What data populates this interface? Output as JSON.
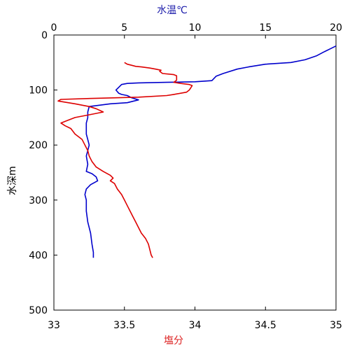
{
  "chart_data": {
    "type": "line",
    "title": "",
    "y_axis": {
      "label": "水深m",
      "range": [
        0,
        500
      ],
      "inverted": true,
      "ticks": [
        0,
        100,
        200,
        300,
        400,
        500
      ]
    },
    "top_x_axis": {
      "label": "水温℃",
      "color": "#1a1aaa",
      "range": [
        0,
        20
      ],
      "ticks": [
        0,
        5,
        10,
        15,
        20
      ]
    },
    "bottom_x_axis": {
      "label": "塩分",
      "color": "#dd2222",
      "range": [
        33,
        35
      ],
      "ticks": [
        33,
        33.5,
        34,
        34.5,
        35
      ]
    },
    "grid": false,
    "legend": "none",
    "series": [
      {
        "axis": "top",
        "color": "#0000cc",
        "points": [
          [
            20.0,
            20
          ],
          [
            19.6,
            25
          ],
          [
            19.2,
            30
          ],
          [
            18.6,
            38
          ],
          [
            17.8,
            45
          ],
          [
            16.8,
            50
          ],
          [
            15.0,
            53
          ],
          [
            13.8,
            58
          ],
          [
            13.0,
            62
          ],
          [
            12.0,
            70
          ],
          [
            11.5,
            75
          ],
          [
            11.2,
            83
          ],
          [
            10.0,
            85
          ],
          [
            8.0,
            86
          ],
          [
            6.0,
            87
          ],
          [
            5.2,
            88
          ],
          [
            4.8,
            90
          ],
          [
            4.6,
            95
          ],
          [
            4.4,
            100
          ],
          [
            4.6,
            106
          ],
          [
            4.8,
            108
          ],
          [
            5.2,
            110
          ],
          [
            5.5,
            114
          ],
          [
            6.0,
            118
          ],
          [
            5.2,
            123
          ],
          [
            4.0,
            125
          ],
          [
            2.5,
            130
          ],
          [
            2.4,
            140
          ],
          [
            2.4,
            150
          ],
          [
            2.3,
            160
          ],
          [
            2.3,
            170
          ],
          [
            2.3,
            180
          ],
          [
            2.4,
            190
          ],
          [
            2.5,
            200
          ],
          [
            2.4,
            210
          ],
          [
            2.3,
            220
          ],
          [
            2.4,
            235
          ],
          [
            2.3,
            248
          ],
          [
            2.7,
            252
          ],
          [
            3.0,
            258
          ],
          [
            3.1,
            265
          ],
          [
            2.6,
            272
          ],
          [
            2.3,
            280
          ],
          [
            2.2,
            290
          ],
          [
            2.3,
            300
          ],
          [
            2.3,
            320
          ],
          [
            2.4,
            340
          ],
          [
            2.6,
            360
          ],
          [
            2.7,
            380
          ],
          [
            2.8,
            395
          ],
          [
            2.8,
            405
          ]
        ]
      },
      {
        "axis": "bottom",
        "color": "#dd0000",
        "points": [
          [
            33.5,
            50
          ],
          [
            33.52,
            53
          ],
          [
            33.55,
            55
          ],
          [
            33.58,
            57
          ],
          [
            33.62,
            58
          ],
          [
            33.68,
            60
          ],
          [
            33.72,
            62
          ],
          [
            33.76,
            64
          ],
          [
            33.75,
            66
          ],
          [
            33.76,
            68
          ],
          [
            33.77,
            70
          ],
          [
            33.85,
            72
          ],
          [
            33.87,
            74
          ],
          [
            33.87,
            77
          ],
          [
            33.87,
            80
          ],
          [
            33.87,
            82
          ],
          [
            33.85,
            86
          ],
          [
            33.9,
            88
          ],
          [
            33.96,
            90
          ],
          [
            33.98,
            92
          ],
          [
            33.97,
            96
          ],
          [
            33.96,
            100
          ],
          [
            33.94,
            104
          ],
          [
            33.85,
            108
          ],
          [
            33.8,
            110
          ],
          [
            33.6,
            113
          ],
          [
            33.3,
            115
          ],
          [
            33.05,
            117
          ],
          [
            33.03,
            120
          ],
          [
            33.15,
            125
          ],
          [
            33.25,
            130
          ],
          [
            33.3,
            134
          ],
          [
            33.35,
            140
          ],
          [
            33.25,
            145
          ],
          [
            33.15,
            150
          ],
          [
            33.1,
            155
          ],
          [
            33.05,
            160
          ],
          [
            33.08,
            165
          ],
          [
            33.12,
            170
          ],
          [
            33.15,
            180
          ],
          [
            33.2,
            190
          ],
          [
            33.22,
            200
          ],
          [
            33.24,
            210
          ],
          [
            33.25,
            220
          ],
          [
            33.27,
            230
          ],
          [
            33.3,
            240
          ],
          [
            33.35,
            248
          ],
          [
            33.4,
            255
          ],
          [
            33.42,
            260
          ],
          [
            33.4,
            265
          ],
          [
            33.43,
            270
          ],
          [
            33.45,
            280
          ],
          [
            33.48,
            290
          ],
          [
            33.5,
            300
          ],
          [
            33.52,
            310
          ],
          [
            33.54,
            320
          ],
          [
            33.56,
            330
          ],
          [
            33.58,
            340
          ],
          [
            33.6,
            350
          ],
          [
            33.62,
            360
          ],
          [
            33.65,
            370
          ],
          [
            33.67,
            380
          ],
          [
            33.68,
            390
          ],
          [
            33.69,
            400
          ],
          [
            33.7,
            405
          ]
        ]
      }
    ]
  }
}
